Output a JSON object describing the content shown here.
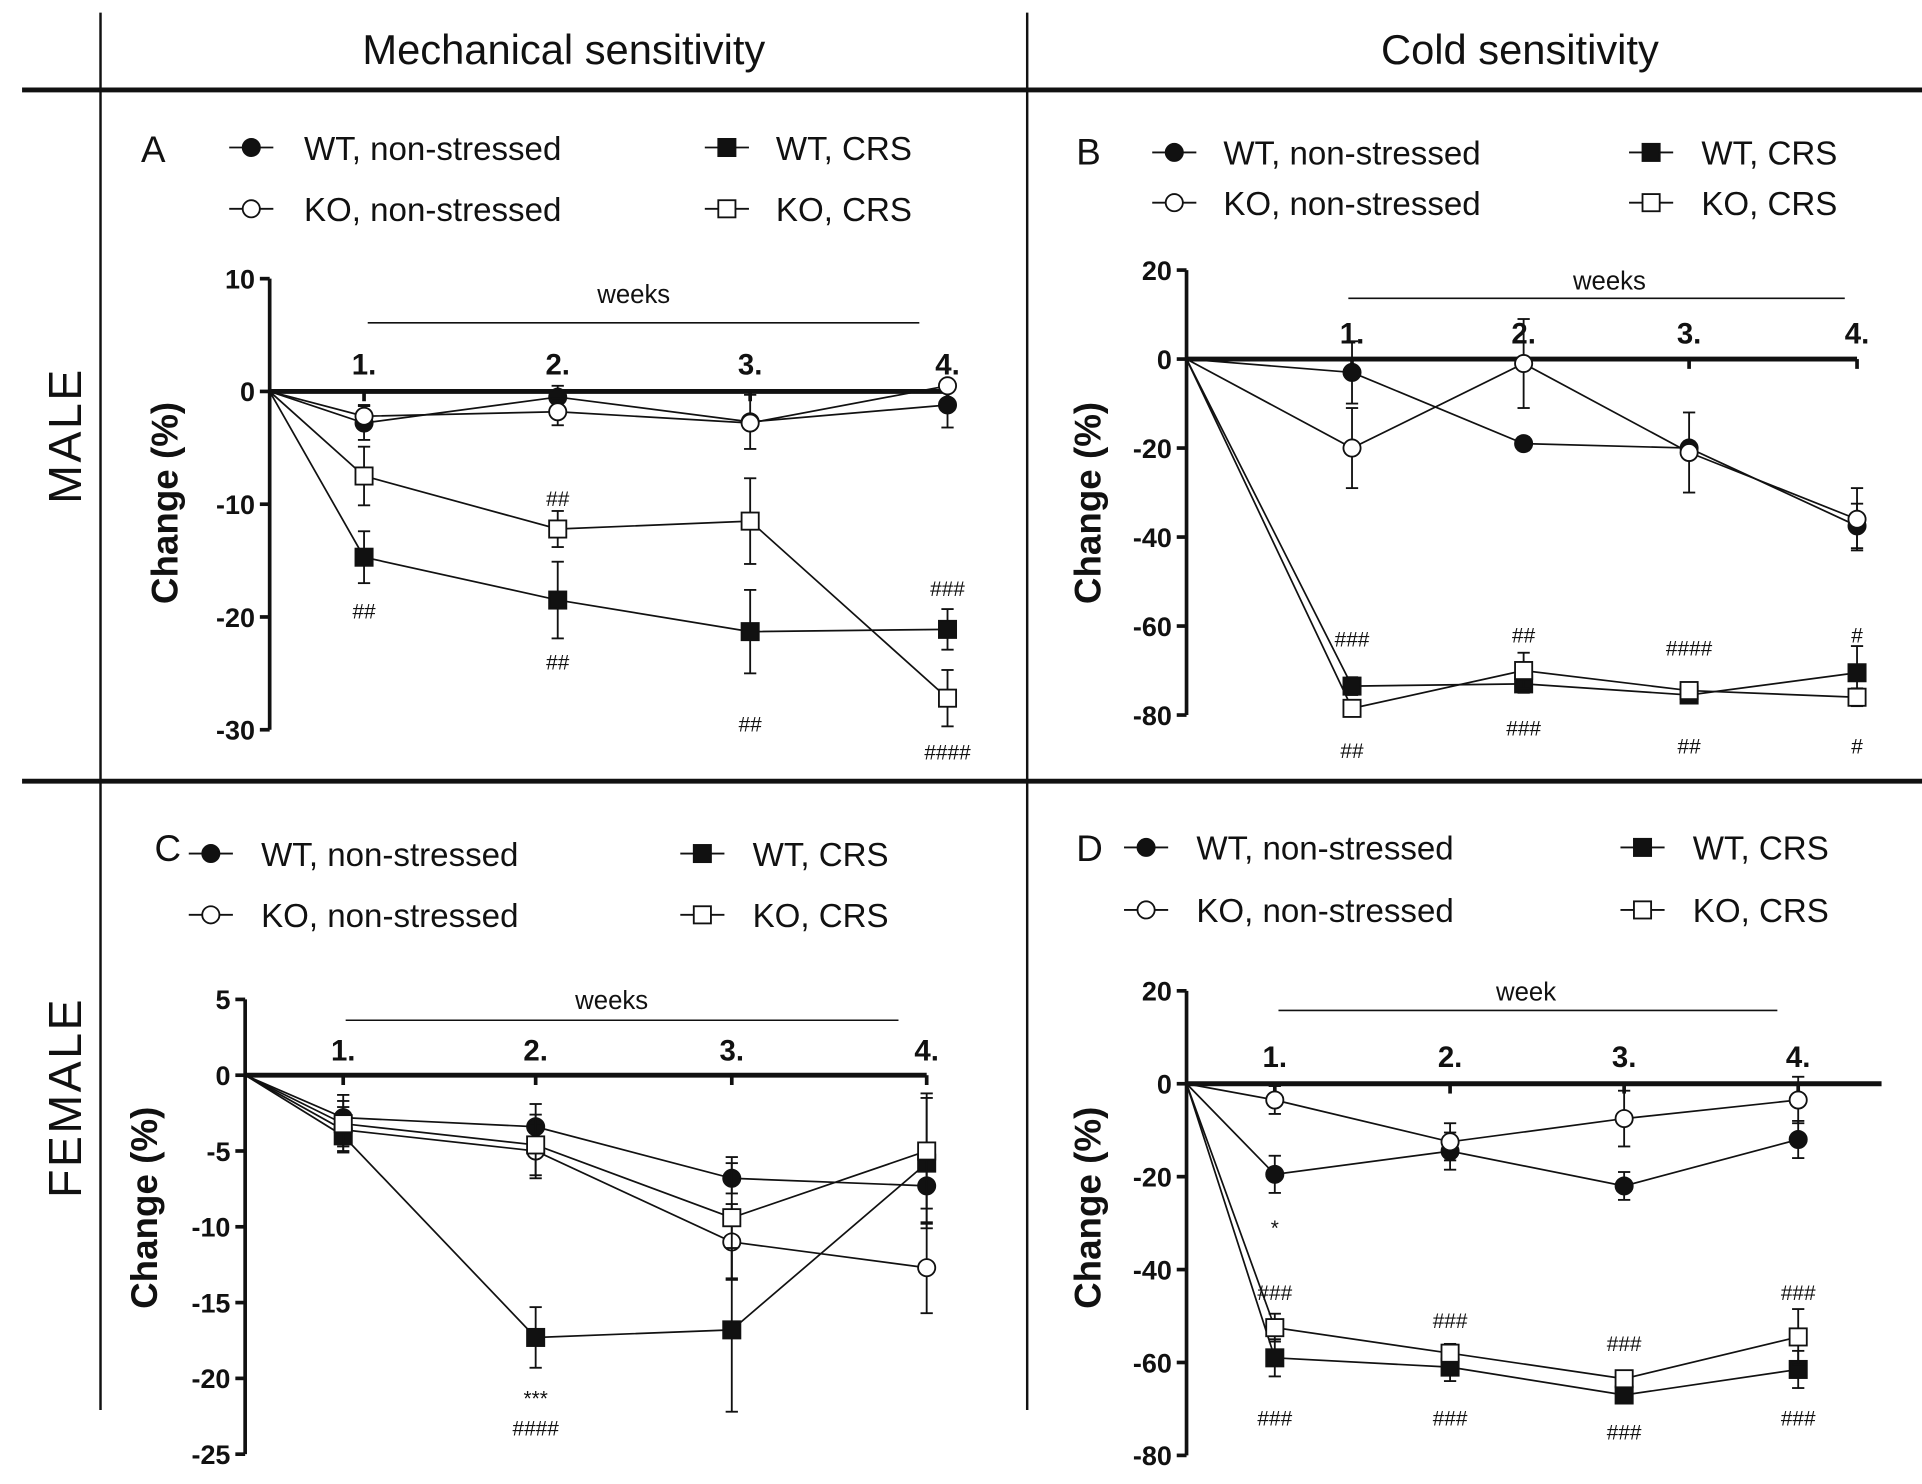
{
  "headers": {
    "columns": [
      "Mechanical sensitivity",
      "Cold sensitivity"
    ],
    "rows": [
      "MALE",
      "FEMALE"
    ]
  },
  "legend_labels": [
    "WT, non-stressed",
    "KO, non-stressed",
    "WT, CRS",
    "KO, CRS"
  ],
  "chart_data": [
    {
      "panel": "A",
      "type": "line",
      "ylabel": "Change (%)",
      "xlabel": "weeks",
      "ylim": [
        -30,
        10
      ],
      "yticks": [
        10,
        0,
        -10,
        -20,
        -30
      ],
      "x": [
        0,
        1,
        2,
        3,
        4
      ],
      "xtick_labels": [
        "1.",
        "2.",
        "3.",
        "4."
      ],
      "series": [
        {
          "name": "WT, non-stressed",
          "marker": "filled-circle",
          "values": [
            0,
            -2.8,
            -0.5,
            -2.7,
            -1.2
          ],
          "errors": [
            0,
            1.5,
            1.0,
            2.4,
            2.0
          ]
        },
        {
          "name": "KO, non-stressed",
          "marker": "open-circle",
          "values": [
            0,
            -2.2,
            -1.8,
            -2.8,
            0.5
          ],
          "errors": [
            0,
            1.0,
            1.2,
            0.5,
            0.5
          ]
        },
        {
          "name": "WT, CRS",
          "marker": "filled-square",
          "values": [
            0,
            -14.7,
            -18.5,
            -21.3,
            -21.1
          ],
          "errors": [
            0,
            2.3,
            3.4,
            3.7,
            1.8
          ]
        },
        {
          "name": "KO, CRS",
          "marker": "open-square",
          "values": [
            0,
            -7.5,
            -12.2,
            -11.5,
            -27.2
          ],
          "errors": [
            0,
            2.6,
            1.6,
            3.8,
            2.5
          ]
        }
      ],
      "annotations": [
        {
          "week": 1,
          "y": -19.5,
          "text": "##"
        },
        {
          "week": 2,
          "y": -9.5,
          "text": "##"
        },
        {
          "week": 2,
          "y": -24,
          "text": "##"
        },
        {
          "week": 3,
          "y": -29.5,
          "text": "##"
        },
        {
          "week": 4,
          "y": -17.5,
          "text": "###"
        },
        {
          "week": 4,
          "y": -32,
          "text": "####"
        }
      ]
    },
    {
      "panel": "B",
      "type": "line",
      "ylabel": "Change (%)",
      "xlabel": "weeks",
      "ylim": [
        -80,
        20
      ],
      "yticks": [
        20,
        0,
        -20,
        -40,
        -60,
        -80
      ],
      "x": [
        0,
        1,
        2,
        3,
        4
      ],
      "xtick_labels": [
        "1.",
        "2.",
        "3.",
        "4."
      ],
      "series": [
        {
          "name": "WT, non-stressed",
          "marker": "filled-circle",
          "values": [
            0,
            -3,
            -19,
            -20,
            -37.5
          ],
          "errors": [
            0,
            7,
            1.5,
            1.5,
            5
          ]
        },
        {
          "name": "KO, non-stressed",
          "marker": "open-circle",
          "values": [
            0,
            -20,
            -1,
            -21,
            -36
          ],
          "errors": [
            0,
            9,
            10,
            9,
            7
          ]
        },
        {
          "name": "WT, CRS",
          "marker": "filled-square",
          "values": [
            0,
            -73.5,
            -73,
            -75.5,
            -70.5
          ],
          "errors": [
            0,
            2,
            2,
            1.5,
            6
          ]
        },
        {
          "name": "KO, CRS",
          "marker": "open-square",
          "values": [
            0,
            -78.5,
            -70,
            -74.5,
            -76
          ],
          "errors": [
            0,
            1,
            4,
            1,
            2
          ]
        }
      ],
      "annotations": [
        {
          "week": 1,
          "y": -63,
          "text": "###"
        },
        {
          "week": 1,
          "y": -88,
          "text": "##"
        },
        {
          "week": 2,
          "y": -62,
          "text": "##"
        },
        {
          "week": 2,
          "y": -83,
          "text": "###"
        },
        {
          "week": 3,
          "y": -65,
          "text": "####"
        },
        {
          "week": 3,
          "y": -87,
          "text": "##"
        },
        {
          "week": 4,
          "y": -62,
          "text": "#"
        },
        {
          "week": 4,
          "y": -87,
          "text": "#"
        }
      ]
    },
    {
      "panel": "C",
      "type": "line",
      "ylabel": "Change (%)",
      "xlabel": "weeks",
      "ylim": [
        -25,
        5
      ],
      "yticks": [
        5,
        0,
        -5,
        -10,
        -15,
        -20,
        -25
      ],
      "x": [
        0,
        1,
        2,
        3,
        4
      ],
      "xtick_labels": [
        "1.",
        "2.",
        "3.",
        "4."
      ],
      "series": [
        {
          "name": "WT, non-stressed",
          "marker": "filled-circle",
          "values": [
            0,
            -2.8,
            -3.4,
            -6.8,
            -7.3
          ],
          "errors": [
            0,
            1.5,
            1.5,
            1.0,
            2.5
          ]
        },
        {
          "name": "KO, non-stressed",
          "marker": "open-circle",
          "values": [
            0,
            -3.6,
            -5.0,
            -11.0,
            -12.7
          ],
          "errors": [
            0,
            1.5,
            1.8,
            2.5,
            3.0
          ]
        },
        {
          "name": "WT, CRS",
          "marker": "filled-square",
          "values": [
            0,
            -4.0,
            -17.3,
            -16.8,
            -5.8
          ],
          "errors": [
            0,
            1.0,
            2.0,
            5.4,
            4.3
          ]
        },
        {
          "name": "KO, CRS",
          "marker": "open-square",
          "values": [
            0,
            -3.2,
            -4.6,
            -9.4,
            -5.0
          ],
          "errors": [
            0,
            1.5,
            2.0,
            4.0,
            3.8
          ]
        }
      ],
      "annotations": [
        {
          "week": 2,
          "y": -21.3,
          "text": "***"
        },
        {
          "week": 2,
          "y": -23.3,
          "text": "####"
        }
      ]
    },
    {
      "panel": "D",
      "type": "line",
      "ylabel": "Change (%)",
      "xlabel": "week",
      "ylim": [
        -80,
        20
      ],
      "yticks": [
        20,
        0,
        -20,
        -40,
        -60,
        -80
      ],
      "x": [
        0,
        1,
        2,
        3,
        4
      ],
      "xtick_labels": [
        "1.",
        "2.",
        "3.",
        "4."
      ],
      "series": [
        {
          "name": "WT, non-stressed",
          "marker": "filled-circle",
          "values": [
            0,
            -19.5,
            -14.5,
            -22,
            -12
          ],
          "errors": [
            0,
            4,
            4,
            3,
            4
          ]
        },
        {
          "name": "KO, non-stressed",
          "marker": "open-circle",
          "values": [
            0,
            -3.5,
            -12.5,
            -7.5,
            -3.5
          ],
          "errors": [
            0,
            3,
            4,
            6,
            5
          ]
        },
        {
          "name": "WT, CRS",
          "marker": "filled-square",
          "values": [
            0,
            -59,
            -61,
            -67,
            -61.5
          ],
          "errors": [
            0,
            4,
            3,
            1,
            4
          ]
        },
        {
          "name": "KO, CRS",
          "marker": "open-square",
          "values": [
            0,
            -52.5,
            -58,
            -63.5,
            -54.5
          ],
          "errors": [
            0,
            3,
            2,
            1,
            6
          ]
        }
      ],
      "annotations": [
        {
          "week": 1,
          "y": -31,
          "text": "*"
        },
        {
          "week": 1,
          "y": -45,
          "text": "###"
        },
        {
          "week": 1,
          "y": -72,
          "text": "###"
        },
        {
          "week": 2,
          "y": -51,
          "text": "###"
        },
        {
          "week": 2,
          "y": -72,
          "text": "###"
        },
        {
          "week": 3,
          "y": -56,
          "text": "###"
        },
        {
          "week": 3,
          "y": -75,
          "text": "###"
        },
        {
          "week": 4,
          "y": -45,
          "text": "###"
        },
        {
          "week": 4,
          "y": -72,
          "text": "###"
        }
      ]
    }
  ]
}
